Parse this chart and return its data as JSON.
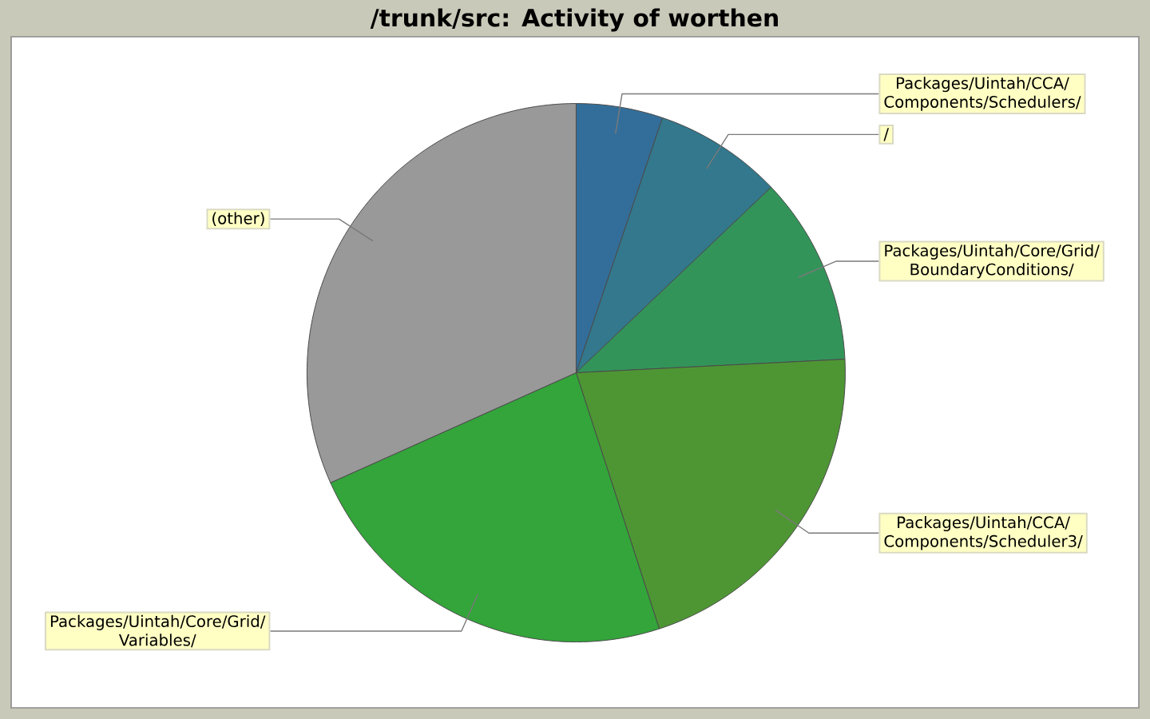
{
  "chart_data": {
    "type": "pie",
    "title": "/trunk/src: Activity of worthen",
    "categories": [
      "Packages/Uintah/CCA/Components/Schedulers/",
      "/",
      "Packages/Uintah/Core/Grid/BoundaryConditions/",
      "Packages/Uintah/CCA/Components/Scheduler3/",
      "Packages/Uintah/Core/Grid/Variables/",
      "(other)"
    ],
    "values": [
      5.2,
      7.7,
      11.3,
      20.8,
      23.3,
      31.7
    ],
    "colors": [
      "#336e9a",
      "#33788c",
      "#33945a",
      "#4e9634",
      "#33a53a",
      "#999999"
    ]
  }
}
